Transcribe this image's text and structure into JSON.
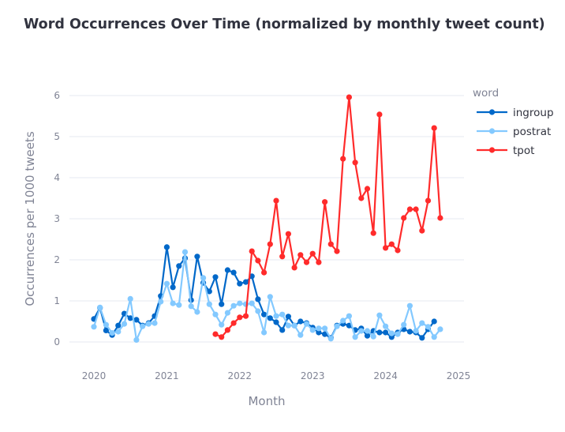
{
  "chart_data": {
    "type": "line",
    "title": "Word Occurrences Over Time (normalized by monthly tweet count)",
    "xlabel": "Month",
    "ylabel": "Occurrences per 1000 tweets",
    "x_ticks": [
      "2020",
      "2021",
      "2022",
      "2023",
      "2024",
      "2025"
    ],
    "y_ticks": [
      "0",
      "1",
      "2",
      "3",
      "4",
      "5",
      "6"
    ],
    "xlim": [
      "2019-10",
      "2025-02"
    ],
    "ylim": [
      -0.3,
      6.3
    ],
    "grid": true,
    "legend": {
      "title": "word",
      "placement": "top-right"
    },
    "series": [
      {
        "name": "ingroup",
        "color": "#0068c9",
        "start": "2020-01",
        "values": [
          0.56,
          0.83,
          0.28,
          0.17,
          0.4,
          0.69,
          0.58,
          0.54,
          0.4,
          0.46,
          0.63,
          1.12,
          2.31,
          1.33,
          1.85,
          2.04,
          1.02,
          2.08,
          1.44,
          1.23,
          1.58,
          0.92,
          1.75,
          1.69,
          1.42,
          1.46,
          1.6,
          1.04,
          0.67,
          0.58,
          0.48,
          0.29,
          0.62,
          0.4,
          0.5,
          0.46,
          0.35,
          0.23,
          0.19,
          0.1,
          0.4,
          0.44,
          0.4,
          0.29,
          0.33,
          0.15,
          0.27,
          0.23,
          0.23,
          0.12,
          0.23,
          0.31,
          0.25,
          0.23,
          0.1,
          0.31,
          0.5
        ]
      },
      {
        "name": "postrat",
        "color": "#83c9ff",
        "start": "2020-01",
        "values": [
          0.37,
          0.84,
          0.42,
          0.22,
          0.25,
          0.44,
          1.05,
          0.05,
          0.38,
          0.44,
          0.46,
          0.98,
          1.42,
          0.94,
          0.9,
          2.19,
          0.87,
          0.73,
          1.56,
          0.92,
          0.67,
          0.42,
          0.71,
          0.88,
          0.94,
          0.92,
          0.94,
          0.75,
          0.23,
          1.1,
          0.63,
          0.67,
          0.4,
          0.4,
          0.17,
          0.44,
          0.29,
          0.33,
          0.33,
          0.08,
          0.38,
          0.52,
          0.63,
          0.12,
          0.27,
          0.27,
          0.13,
          0.65,
          0.38,
          0.21,
          0.19,
          0.42,
          0.88,
          0.27,
          0.46,
          0.37,
          0.12,
          0.31
        ]
      },
      {
        "name": "tpot",
        "color": "#ff2b2b",
        "start": "2021-09",
        "values": [
          0.19,
          0.12,
          0.29,
          0.46,
          0.6,
          0.63,
          2.21,
          1.98,
          1.69,
          2.38,
          3.44,
          2.08,
          2.63,
          1.81,
          2.12,
          1.94,
          2.15,
          1.94,
          3.41,
          2.38,
          2.21,
          4.46,
          5.96,
          4.37,
          3.5,
          3.73,
          2.65,
          5.54,
          2.29,
          2.38,
          2.23,
          3.02,
          3.23,
          3.23,
          2.71,
          3.44,
          5.21,
          3.02
        ]
      }
    ]
  }
}
